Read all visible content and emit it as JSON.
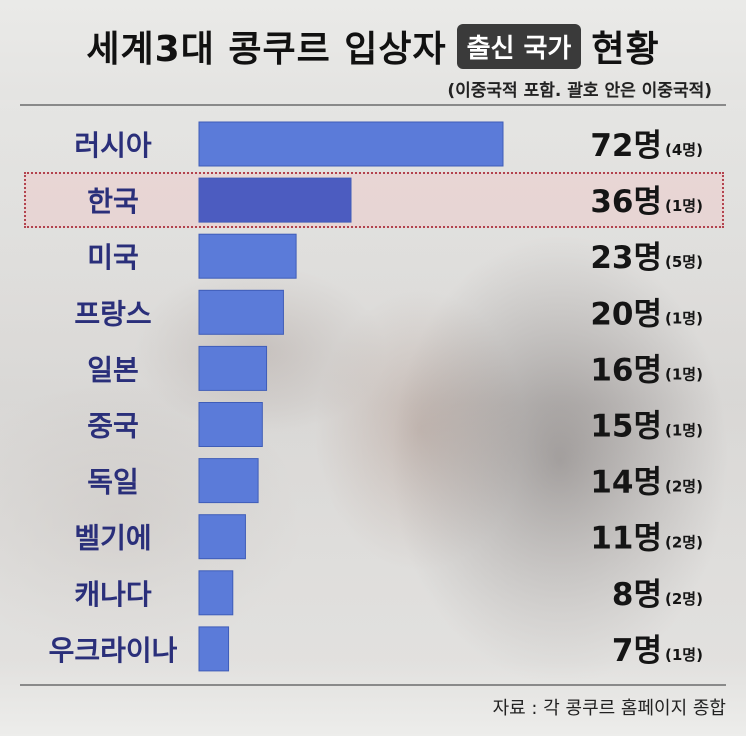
{
  "title": {
    "before": "세계3대 콩쿠르 입상자",
    "highlight": "출신 국가",
    "after": "현황"
  },
  "subtitle": "(이중국적 포함. 괄호 안은 이중국적)",
  "source": "자료 : 각 콩쿠르 홈페이지 종합",
  "highlighted_category": "한국",
  "colors": {
    "bar": "#5b7bd9",
    "bar_highlight": "#4c5cc0",
    "bar_stroke": "#3f5db8",
    "label": "#2a2f7a",
    "highlight_border": "#b2434e"
  },
  "chart_data": {
    "type": "bar",
    "orientation": "horizontal",
    "categories": [
      "러시아",
      "한국",
      "미국",
      "프랑스",
      "일본",
      "중국",
      "독일",
      "벨기에",
      "캐나다",
      "우크라이나"
    ],
    "values": [
      72,
      36,
      23,
      20,
      16,
      15,
      14,
      11,
      8,
      7
    ],
    "value_labels": [
      "72명",
      "36명",
      "23명",
      "20명",
      "16명",
      "15명",
      "14명",
      "11명",
      "8명",
      "7명"
    ],
    "dual_citizenship": [
      4,
      1,
      5,
      1,
      1,
      1,
      2,
      2,
      2,
      1
    ],
    "dual_labels": [
      "(4명)",
      "(1명)",
      "(5명)",
      "(1명)",
      "(1명)",
      "(1명)",
      "(2명)",
      "(2명)",
      "(2명)",
      "(1명)"
    ],
    "xlim": [
      0,
      72
    ],
    "grid": false,
    "legend": "none"
  }
}
